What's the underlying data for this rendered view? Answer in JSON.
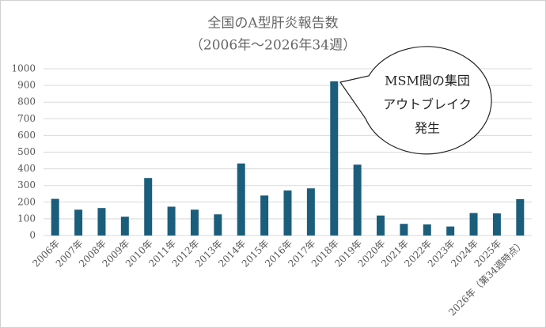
{
  "chart_data": {
    "type": "bar",
    "title": "全国のA型肝炎報告数",
    "subtitle": "（2006年～2026年34週）",
    "annotation": [
      "MSM間の集団",
      "アウトブレイク",
      "発生"
    ],
    "categories": [
      "2006年",
      "2007年",
      "2008年",
      "2009年",
      "2010年",
      "2011年",
      "2012年",
      "2013年",
      "2014年",
      "2015年",
      "2016年",
      "2017年",
      "2018年",
      "2019年",
      "2020年",
      "2021年",
      "2022年",
      "2023年",
      "2024年",
      "2025年",
      "2026年（第34週時点）"
    ],
    "values": [
      220,
      155,
      165,
      113,
      345,
      173,
      155,
      127,
      432,
      240,
      270,
      283,
      925,
      425,
      120,
      70,
      67,
      54,
      135,
      133,
      218
    ],
    "color": "#1b5e7c",
    "ylim": [
      0,
      1000
    ],
    "yticks": [
      0,
      100,
      200,
      300,
      400,
      500,
      600,
      700,
      800,
      900,
      1000
    ],
    "grid": true
  }
}
